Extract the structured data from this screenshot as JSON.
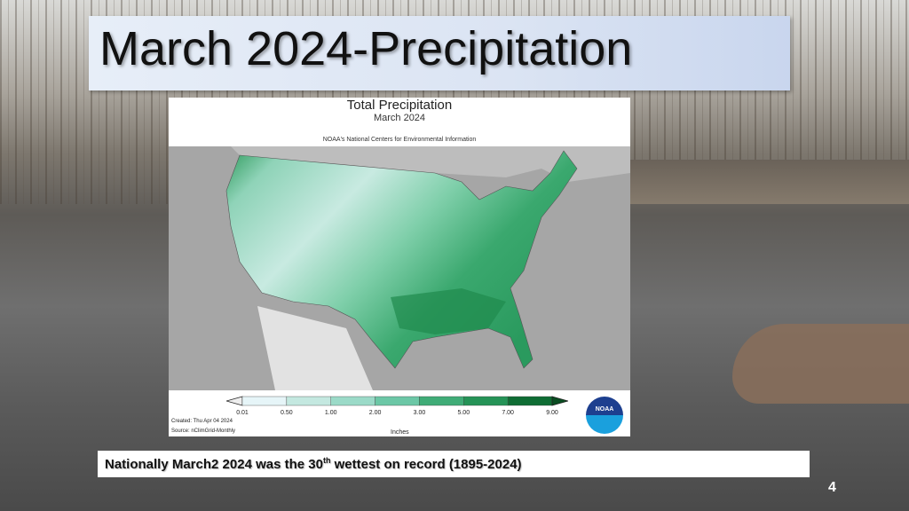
{
  "slide": {
    "title": "March 2024-Precipitation",
    "page_number": "4"
  },
  "map": {
    "title": "Total Precipitation",
    "subtitle": "March 2024",
    "organization": "NOAA's National Centers for Environmental Information",
    "legend": {
      "ticks": [
        "0.01",
        "0.50",
        "1.00",
        "2.00",
        "3.00",
        "5.00",
        "7.00",
        "9.00"
      ],
      "colors": [
        "#e6f5f8",
        "#c4e8e0",
        "#9bdac8",
        "#6cc7a6",
        "#40ac77",
        "#259357",
        "#0f6d34"
      ],
      "units": "Inches"
    },
    "created": "Created: Thu Apr 04 2024",
    "source": "Source: nClimGrid-Monthly",
    "logo_text": "NOAA"
  },
  "caption": {
    "prefix": "Nationally March2 2024 was the 30",
    "superscript": "th",
    "suffix": " wettest on record (1895-2024)"
  }
}
